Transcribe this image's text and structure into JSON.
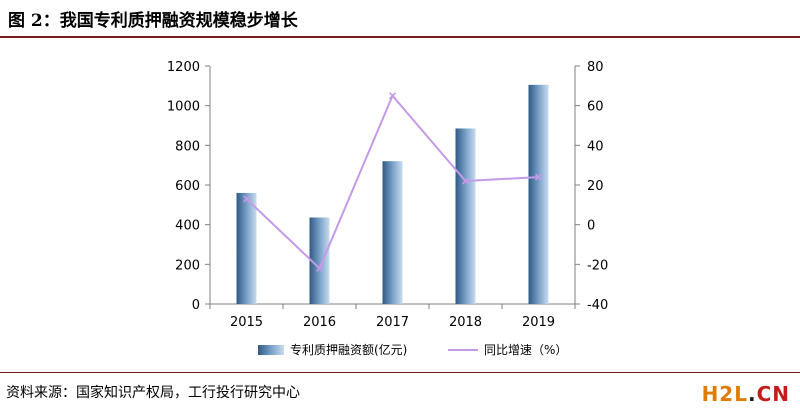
{
  "figure": {
    "title": "图 2：我国专利质押融资规模稳步增长",
    "source": "资料来源：国家知识产权局，工行投行研究中心",
    "watermark": {
      "part1": "H2L",
      "part2": ".",
      "part3": "CN"
    }
  },
  "colors": {
    "bar_dark": "#2f5a86",
    "bar_mid": "#7fa6cb",
    "bar_light": "#c9dcef",
    "line": "#c49ae8",
    "axis": "#808080",
    "rule": "#7a1b1b"
  },
  "chart_data": {
    "type": "bar+line",
    "categories": [
      "2015",
      "2016",
      "2017",
      "2018",
      "2019"
    ],
    "series": [
      {
        "name": "专利质押融资额(亿元)",
        "type": "bar",
        "axis": "left",
        "values": [
          560,
          436,
          720,
          885,
          1105
        ]
      },
      {
        "name": "同比增速（%）",
        "type": "line",
        "axis": "right",
        "values": [
          13,
          -22,
          65,
          22,
          24
        ]
      }
    ],
    "left_axis": {
      "min": 0,
      "max": 1200,
      "step": 200,
      "ticks": [
        "0",
        "200",
        "400",
        "600",
        "800",
        "1000",
        "1200"
      ]
    },
    "right_axis": {
      "min": -40,
      "max": 80,
      "step": 20,
      "ticks": [
        "-40",
        "-20",
        "0",
        "20",
        "40",
        "60",
        "80"
      ]
    },
    "grid": false,
    "legend": "bottom"
  }
}
